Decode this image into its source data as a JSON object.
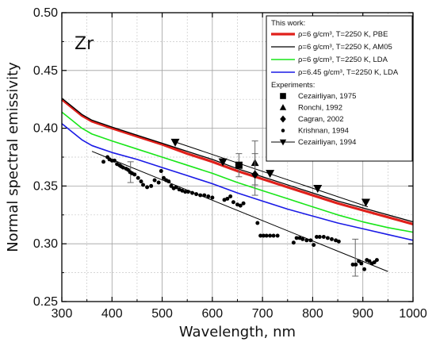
{
  "chart_data": {
    "type": "line",
    "annotation": "Zr",
    "xlabel": "Wavelength, nm",
    "ylabel": "Normal spectral emissivity",
    "xlim": [
      300,
      1000
    ],
    "ylim": [
      0.25,
      0.5
    ],
    "xticks": [
      300,
      400,
      500,
      600,
      700,
      800,
      900,
      1000
    ],
    "yticks": [
      0.25,
      0.3,
      0.35,
      0.4,
      0.45,
      0.5
    ],
    "xtick_labels": [
      "300",
      "400",
      "500",
      "600",
      "700",
      "800",
      "900",
      "1000"
    ],
    "ytick_labels": [
      "0.25",
      "0.30",
      "0.35",
      "0.40",
      "0.45",
      "0.50"
    ],
    "grid": true,
    "legend_position": "top-right",
    "legend_headers": {
      "theory": "This work:",
      "experiments": "Experiments:"
    },
    "series": [
      {
        "name": "ρ=6 g/cm³, T=2250 K, PBE",
        "style": "line",
        "color": "#e0201b",
        "width": 3.2,
        "x": [
          300,
          320,
          340,
          360,
          380,
          400,
          450,
          500,
          550,
          600,
          650,
          700,
          750,
          800,
          850,
          900,
          950,
          1000
        ],
        "y": [
          0.425,
          0.418,
          0.411,
          0.406,
          0.403,
          0.4,
          0.393,
          0.386,
          0.378,
          0.371,
          0.363,
          0.356,
          0.349,
          0.342,
          0.335,
          0.329,
          0.323,
          0.317
        ]
      },
      {
        "name": "ρ=6 g/cm³, T=2250 K, AM05",
        "style": "line",
        "color": "#000000",
        "width": 1.3,
        "x": [
          300,
          320,
          340,
          360,
          380,
          400,
          450,
          500,
          550,
          600,
          650,
          700,
          750,
          800,
          850,
          900,
          950,
          1000
        ],
        "y": [
          0.426,
          0.419,
          0.412,
          0.407,
          0.404,
          0.401,
          0.394,
          0.387,
          0.38,
          0.373,
          0.365,
          0.358,
          0.351,
          0.344,
          0.337,
          0.331,
          0.325,
          0.319
        ]
      },
      {
        "name": "ρ=6 g/cm³, T=2250 K, LDA",
        "style": "line",
        "color": "#19e619",
        "width": 1.6,
        "x": [
          300,
          320,
          340,
          360,
          380,
          400,
          450,
          500,
          550,
          600,
          650,
          700,
          750,
          800,
          850,
          900,
          950,
          1000
        ],
        "y": [
          0.414,
          0.407,
          0.4,
          0.395,
          0.392,
          0.389,
          0.382,
          0.375,
          0.368,
          0.361,
          0.353,
          0.346,
          0.339,
          0.332,
          0.325,
          0.319,
          0.314,
          0.31
        ]
      },
      {
        "name": "ρ=6.45 g/cm³, T=2250 K, LDA",
        "style": "line",
        "color": "#1a1ae6",
        "width": 1.6,
        "x": [
          300,
          320,
          340,
          360,
          380,
          400,
          450,
          500,
          550,
          600,
          650,
          700,
          750,
          800,
          850,
          900,
          950,
          1000
        ],
        "y": [
          0.404,
          0.397,
          0.39,
          0.385,
          0.382,
          0.379,
          0.373,
          0.366,
          0.359,
          0.352,
          0.344,
          0.337,
          0.33,
          0.324,
          0.318,
          0.313,
          0.308,
          0.303
        ]
      },
      {
        "name": "Cezairliyan, 1975",
        "style": "marker",
        "marker": "square",
        "color": "#000000",
        "x": [
          653
        ],
        "y": [
          0.368
        ],
        "errors": [
          0.01
        ]
      },
      {
        "name": "Ronchi, 1992",
        "style": "marker",
        "marker": "triangle",
        "color": "#000000",
        "x": [
          685
        ],
        "y": [
          0.37
        ],
        "errors": [
          0.019
        ]
      },
      {
        "name": "Cagran, 2002",
        "style": "marker",
        "marker": "diamond",
        "color": "#000000",
        "x": [
          685
        ],
        "y": [
          0.36
        ],
        "errors": [
          0.018
        ]
      },
      {
        "name": "Krishnan, 1994",
        "style": "scatter",
        "marker": "dot",
        "color": "#000000",
        "x": [
          383,
          391,
          395,
          400,
          405,
          410,
          415,
          418,
          422,
          428,
          432,
          436,
          440,
          445,
          452,
          458,
          462,
          470,
          478,
          485,
          493,
          498,
          503,
          508,
          513,
          518,
          523,
          528,
          534,
          540,
          546,
          552,
          560,
          568,
          576,
          584,
          592,
          600,
          624,
          630,
          636,
          642,
          650,
          656,
          662,
          690,
          696,
          702,
          708,
          715,
          722,
          730,
          762,
          768,
          774,
          780,
          788,
          796,
          802,
          808,
          814,
          822,
          830,
          838,
          846,
          852,
          880,
          886,
          892,
          897,
          903,
          908,
          913,
          918,
          923,
          928
        ],
        "y": [
          0.371,
          0.375,
          0.373,
          0.372,
          0.372,
          0.369,
          0.368,
          0.367,
          0.366,
          0.365,
          0.364,
          0.362,
          0.361,
          0.36,
          0.357,
          0.354,
          0.351,
          0.349,
          0.35,
          0.355,
          0.353,
          0.363,
          0.357,
          0.355,
          0.354,
          0.35,
          0.348,
          0.349,
          0.347,
          0.346,
          0.345,
          0.345,
          0.344,
          0.343,
          0.342,
          0.342,
          0.341,
          0.34,
          0.338,
          0.339,
          0.341,
          0.336,
          0.334,
          0.333,
          0.335,
          0.318,
          0.307,
          0.307,
          0.307,
          0.307,
          0.307,
          0.307,
          0.301,
          0.305,
          0.305,
          0.304,
          0.303,
          0.303,
          0.299,
          0.306,
          0.306,
          0.306,
          0.305,
          0.304,
          0.303,
          0.302,
          0.282,
          0.282,
          0.285,
          0.283,
          0.278,
          0.286,
          0.285,
          0.283,
          0.284,
          0.286
        ],
        "errors_at": [
          {
            "x": 437,
            "y": 0.362,
            "err": 0.009
          },
          {
            "x": 885,
            "y": 0.288,
            "err": 0.016
          }
        ]
      },
      {
        "name": "Cezairliyan, 1994",
        "style": "line-marker",
        "marker": "triangle-down",
        "color": "#000000",
        "x": [
          526,
          621,
          715,
          810,
          906
        ],
        "y": [
          0.388,
          0.371,
          0.361,
          0.348,
          0.336
        ]
      }
    ],
    "fit_lines": [
      {
        "of": "Krishnan, 1994",
        "x": [
          360,
          950
        ],
        "y": [
          0.38,
          0.276
        ]
      },
      {
        "of": "Cezairliyan, 1994",
        "x": [
          520,
          910
        ],
        "y": [
          0.389,
          0.332
        ]
      }
    ]
  }
}
